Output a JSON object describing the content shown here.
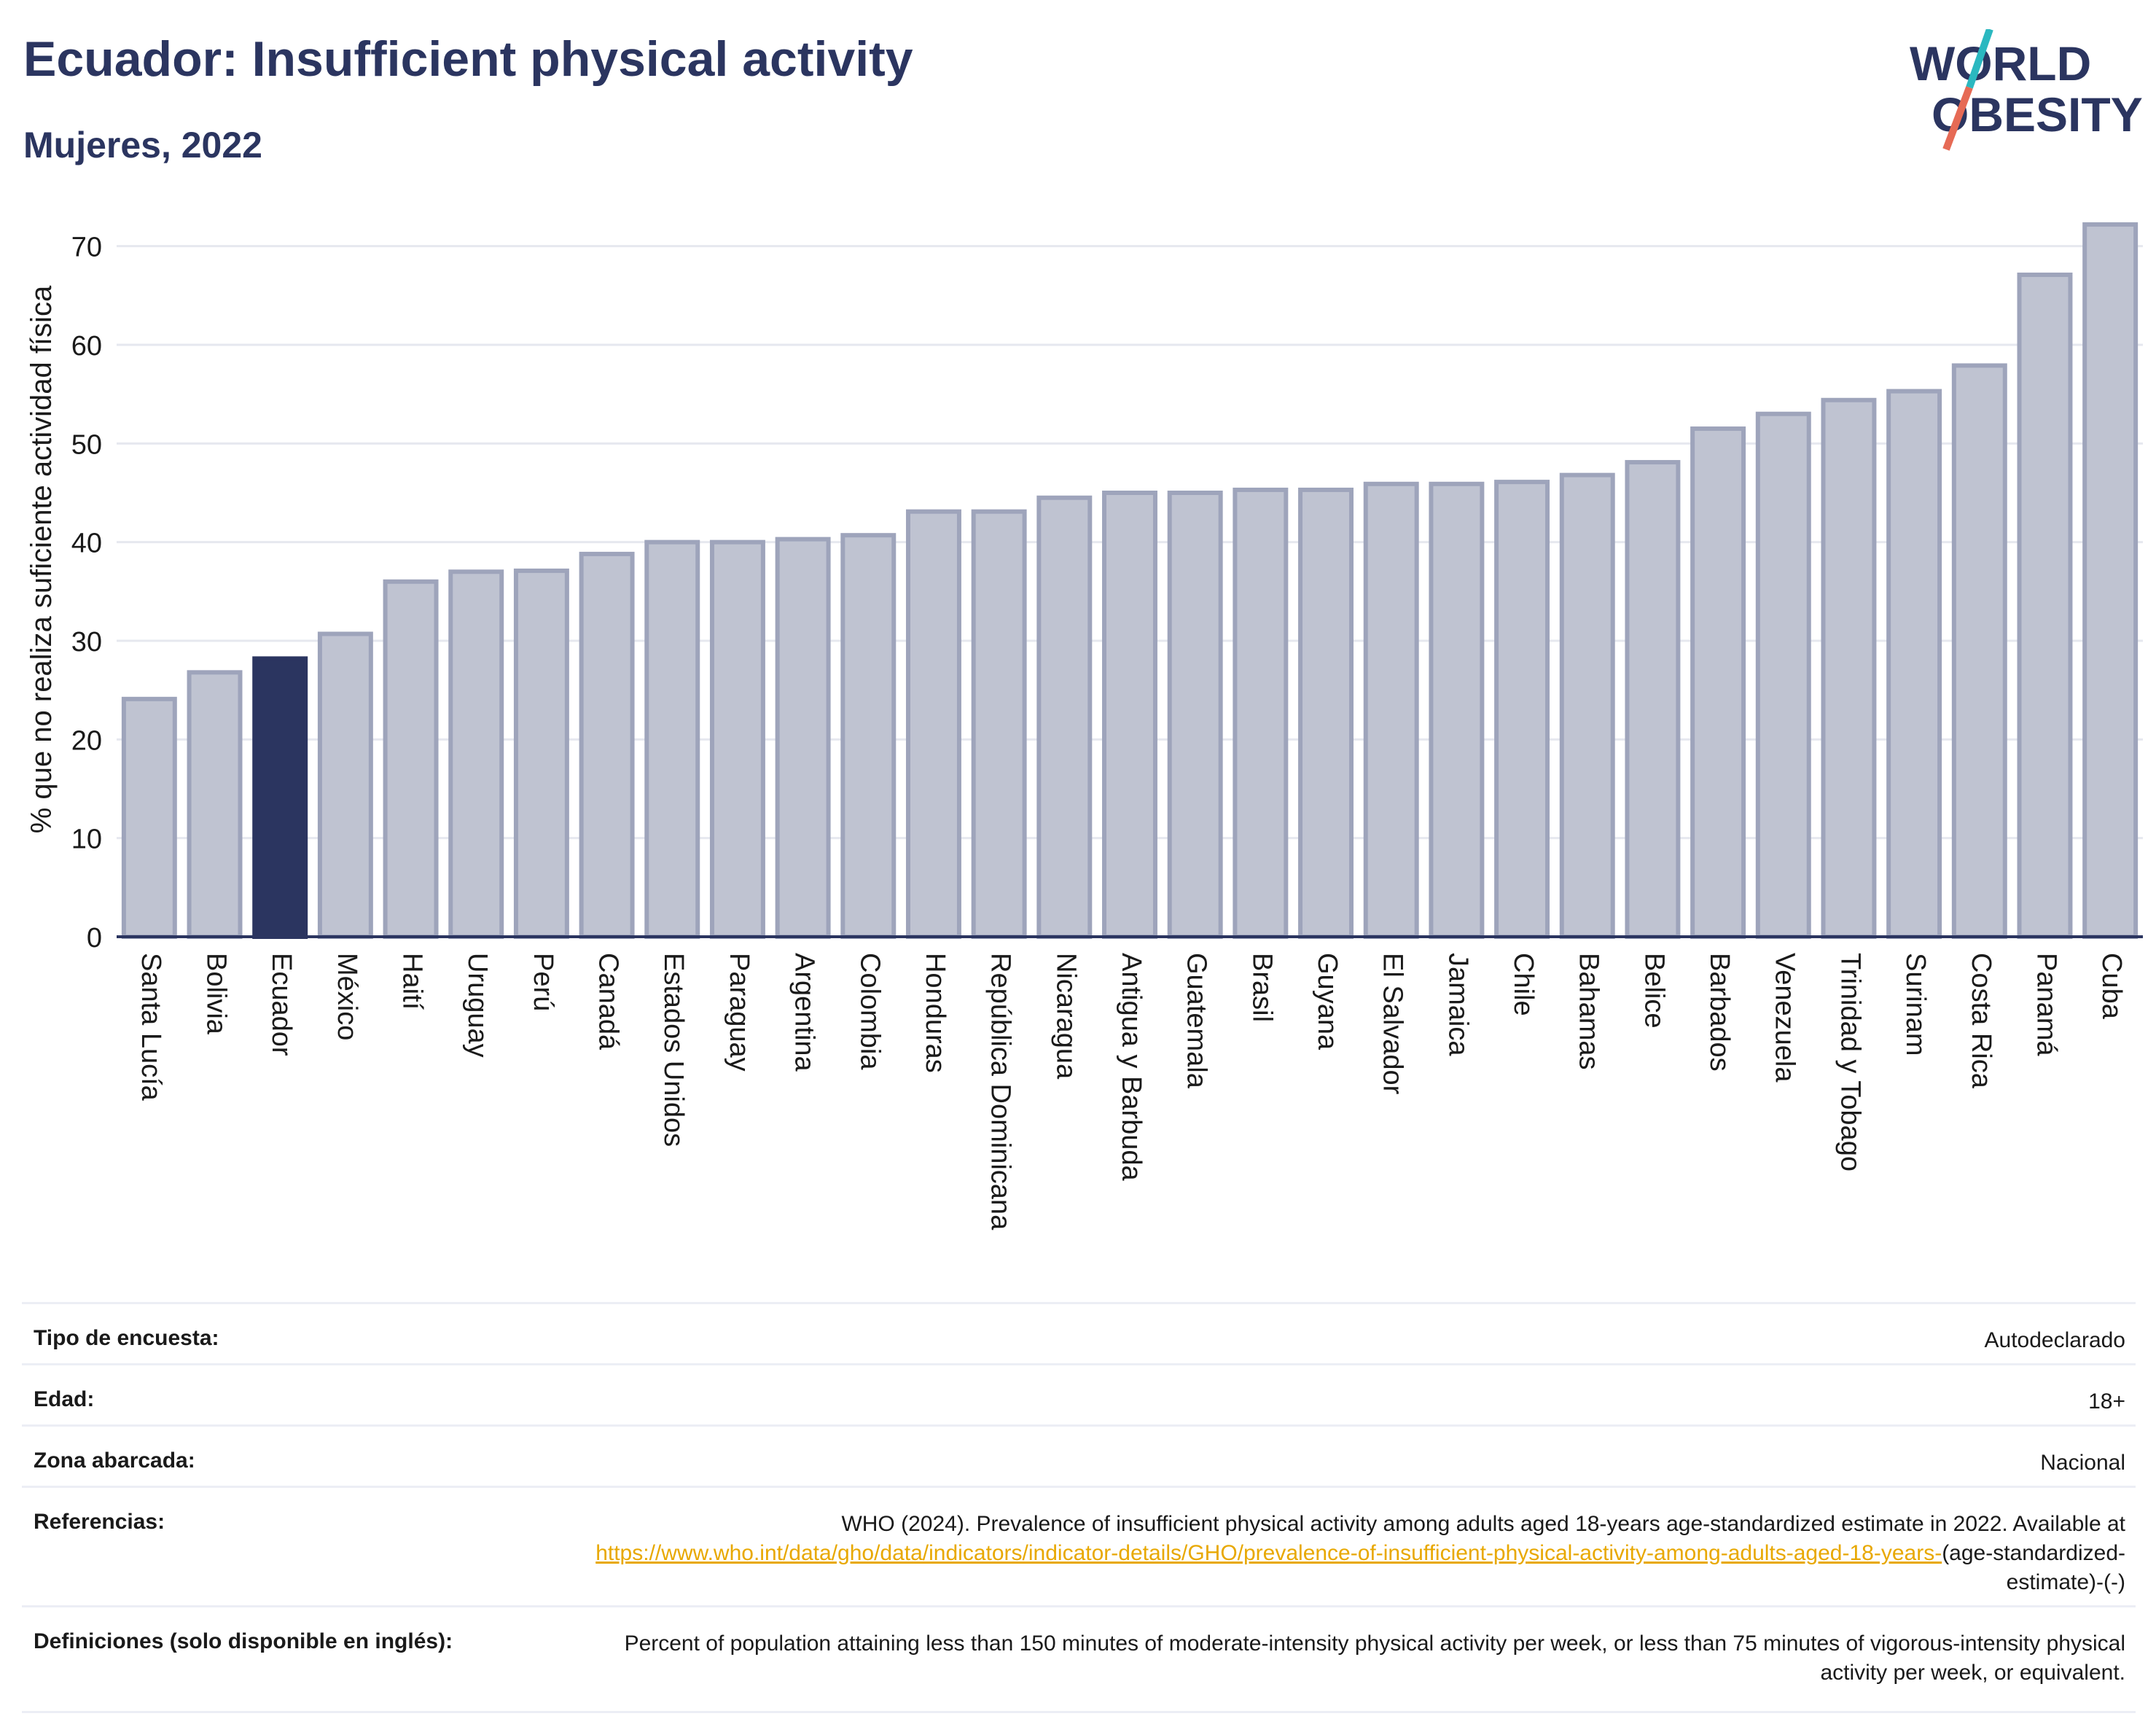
{
  "header": {
    "title": "Ecuador: Insufficient physical activity",
    "subtitle": "Mujeres, 2022"
  },
  "logo": {
    "line1": "WORLD",
    "line2": "OBESITY"
  },
  "chart_data": {
    "type": "bar",
    "ylabel": "% que no realiza suficiente actividad física",
    "ylim": [
      0,
      75
    ],
    "yticks": [
      0,
      10,
      20,
      30,
      40,
      50,
      60,
      70
    ],
    "grid": true,
    "highlight": "Ecuador",
    "colors": {
      "bar": "#bfc3d1",
      "bar_edge": "#9ea4bb",
      "highlight": "#2b3560",
      "grid": "#e6e8ef",
      "axis": "#2b3560"
    },
    "categories": [
      "Santa Lucía",
      "Bolivia",
      "Ecuador",
      "México",
      "Haití",
      "Uruguay",
      "Perú",
      "Canadá",
      "Estados Unidos",
      "Paraguay",
      "Argentina",
      "Colombia",
      "Honduras",
      "República Dominicana",
      "Nicaragua",
      "Antigua y Barbuda",
      "Guatemala",
      "Brasil",
      "Guyana",
      "El Salvador",
      "Jamaica",
      "Chile",
      "Bahamas",
      "Belice",
      "Barbados",
      "Venezuela",
      "Trinidad y Tobago",
      "Surinam",
      "Costa Rica",
      "Panamá",
      "Cuba"
    ],
    "values": [
      24.1,
      26.8,
      28.2,
      30.7,
      36.0,
      37.0,
      37.1,
      38.8,
      40.0,
      40.0,
      40.3,
      40.7,
      43.1,
      43.1,
      44.5,
      45.0,
      45.0,
      45.3,
      45.3,
      45.9,
      45.9,
      46.1,
      46.8,
      48.1,
      51.5,
      53.0,
      54.4,
      55.3,
      57.9,
      67.1,
      72.2
    ]
  },
  "meta": [
    {
      "label": "Tipo de encuesta:",
      "value": "Autodeclarado"
    },
    {
      "label": "Edad:",
      "value": "18+"
    },
    {
      "label": "Zona abarcada:",
      "value": "Nacional"
    },
    {
      "label": "Referencias:",
      "value": "WHO (2024). Prevalence of insufficient physical activity among adults aged 18-years age-standardized estimate in 2022. Available at",
      "link": "https://www.who.int/data/gho/data/indicators/indicator-details/GHO/prevalence-of-insufficient-physical-activity-among-adults-aged-18-years-",
      "link_suffix": "(age-standardized-estimate)-(-)"
    },
    {
      "label": "Definiciones (solo disponible en inglés):",
      "value": "Percent of population attaining less than 150 minutes of moderate-intensity physical activity per week, or less than 75 minutes of vigorous-intensity physical activity per week, or equivalent."
    }
  ]
}
